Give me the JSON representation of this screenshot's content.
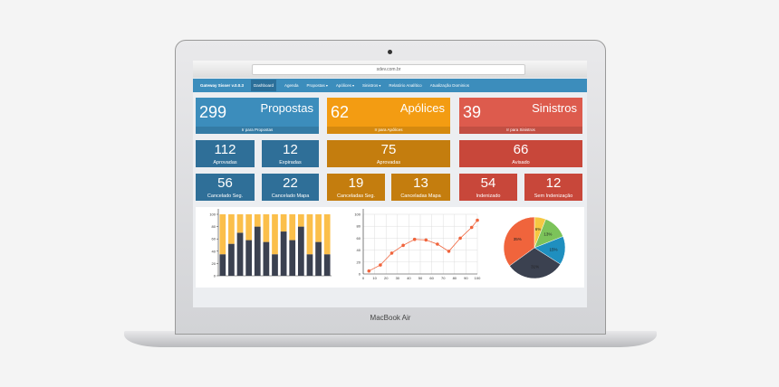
{
  "device_label": "MacBook Air",
  "browser": {
    "url": "sdev.com.br"
  },
  "navbar": {
    "brand": "Gateway Sisser v.0.0.3",
    "items": [
      "Dashboard",
      "Agenda",
      "Propostas",
      "Apólices",
      "Sinistros",
      "Relatório Analítico",
      "Atualização Dominios"
    ]
  },
  "tiles": [
    {
      "value": 299,
      "label": "Propostas",
      "link": "Ir para Propostas"
    },
    {
      "value": 62,
      "label": "Apólices",
      "link": "Ir para Apólices"
    },
    {
      "value": 39,
      "label": "Sinistros",
      "link": "Ir para Sinistros"
    },
    {
      "value": 112,
      "label": "Aprovadas"
    },
    {
      "value": 12,
      "label": "Expiradas"
    },
    {
      "value": 75,
      "label": "Aprovadas"
    },
    {
      "value": 66,
      "label": "Avisado"
    },
    {
      "value": 56,
      "label": "Cancelado Seg."
    },
    {
      "value": 22,
      "label": "Cancelado Mapa"
    },
    {
      "value": 19,
      "label": "Canceladas Seg."
    },
    {
      "value": 13,
      "label": "Canceladas Mapa"
    },
    {
      "value": 54,
      "label": "Indenizado"
    },
    {
      "value": 12,
      "label": "Sem Indenização"
    }
  ],
  "chart_data": [
    {
      "type": "bar",
      "stacked": true,
      "categories": [
        null,
        null,
        null,
        null,
        null,
        null,
        null,
        null,
        null,
        null,
        null,
        null,
        null
      ],
      "series": [
        {
          "color": "#3b4150",
          "values": [
            35,
            52,
            70,
            58,
            80,
            55,
            35,
            72,
            58,
            80,
            35,
            55,
            35
          ]
        },
        {
          "color": "#fbbf4b",
          "values": [
            65,
            48,
            30,
            42,
            20,
            45,
            65,
            28,
            42,
            20,
            65,
            45,
            65
          ]
        }
      ],
      "ylim": [
        0,
        100
      ],
      "yticks": [
        0,
        20,
        40,
        60,
        80,
        100
      ]
    },
    {
      "type": "line",
      "color": "#f0643c",
      "x": [
        5,
        15,
        25,
        35,
        45,
        55,
        65,
        75,
        85,
        95,
        100
      ],
      "values": [
        5,
        15,
        35,
        48,
        58,
        57,
        50,
        38,
        60,
        78,
        90
      ],
      "xlim": [
        0,
        100
      ],
      "xticks": [
        0,
        10,
        20,
        30,
        40,
        50,
        60,
        70,
        80,
        90,
        100
      ],
      "ylim": [
        0,
        100
      ],
      "yticks": [
        0,
        20,
        40,
        60,
        80,
        100
      ],
      "grid": true
    },
    {
      "type": "pie",
      "categories": [
        null,
        null,
        null,
        null,
        null
      ],
      "values": [
        6,
        13,
        15,
        31,
        35
      ],
      "value_labels": [
        "6%",
        "13%",
        "15%",
        "31%",
        "35%"
      ],
      "colors": [
        "#f5c842",
        "#7cc35a",
        "#1f8fbf",
        "#3b4150",
        "#f0643c"
      ]
    }
  ]
}
